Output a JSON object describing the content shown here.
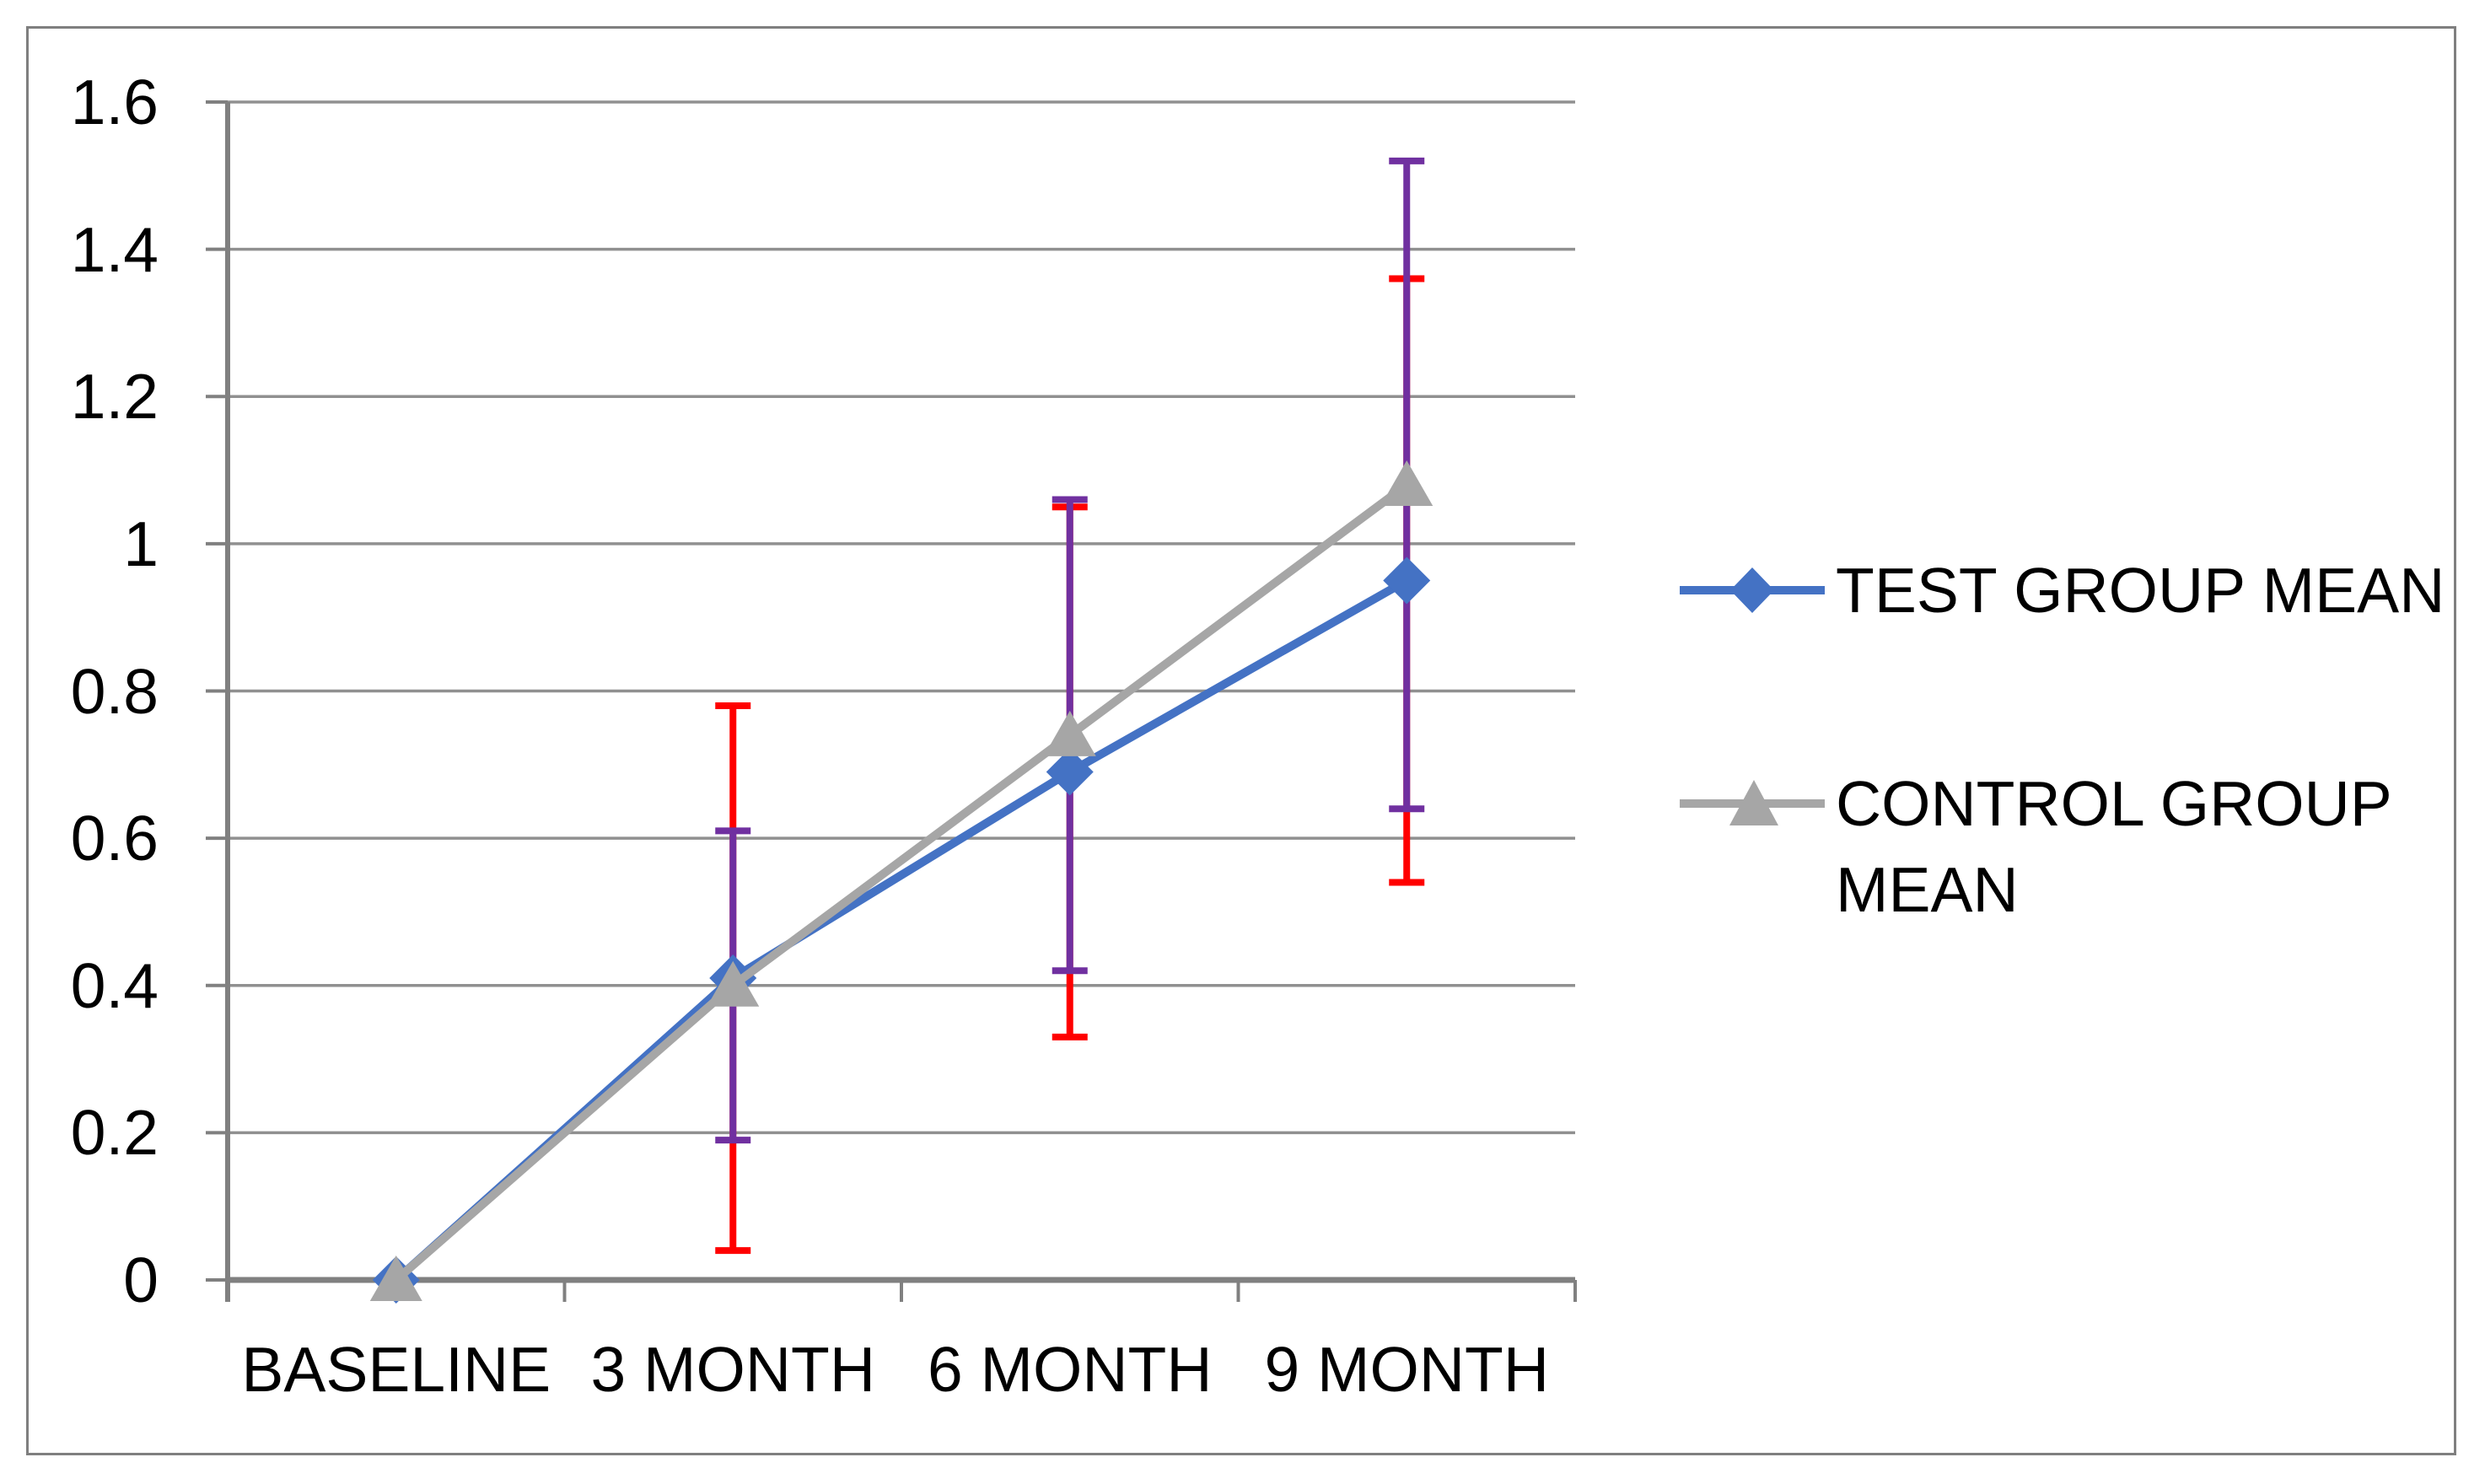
{
  "chart_data": {
    "type": "line",
    "title": "",
    "xlabel": "",
    "ylabel": "",
    "categories": [
      "BASELINE",
      "3 MONTH",
      "6 MONTH",
      "9 MONTH"
    ],
    "series": [
      {
        "name": "TEST GROUP MEAN",
        "color": "#4472C4",
        "marker": "diamond",
        "values": [
          0,
          0.41,
          0.69,
          0.95
        ],
        "error_plus_minus": [
          0,
          0.37,
          0.36,
          0.41
        ],
        "error_bar_color": "#FF0000"
      },
      {
        "name": "CONTROL GROUP MEAN",
        "color": "#A6A6A6",
        "marker": "triangle",
        "values": [
          0,
          0.4,
          0.74,
          1.08
        ],
        "error_plus_minus": [
          0,
          0.21,
          0.32,
          0.44
        ],
        "error_bar_color": "#7030A0"
      }
    ],
    "y_axis": {
      "min": 0,
      "max": 1.6,
      "step": 0.2,
      "tick_labels": [
        "0",
        "0.2",
        "0.4",
        "0.6",
        "0.8",
        "1",
        "1.2",
        "1.4",
        "1.6"
      ]
    },
    "grid": true,
    "legend_position": "right",
    "colors": {
      "gridline": "#909090",
      "axis": "#808080",
      "border": "#7F7F7F",
      "background": "#FFFFFF",
      "text": "#000000"
    }
  }
}
